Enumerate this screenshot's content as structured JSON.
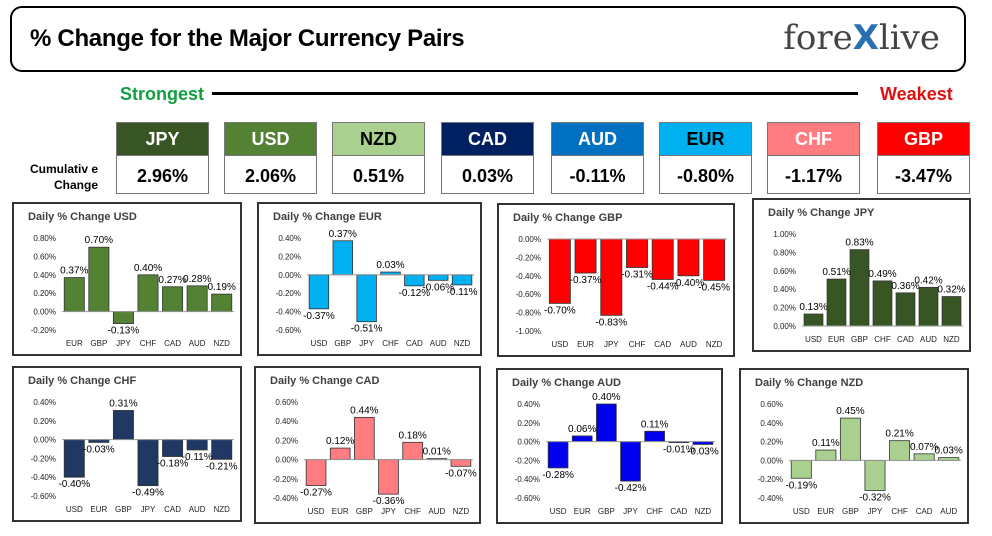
{
  "header": {
    "title": "% Change for the Major Currency Pairs",
    "logo_left": "fore",
    "logo_x": "X",
    "logo_right": "live"
  },
  "scale": {
    "strongest": "Strongest",
    "weakest": "Weakest"
  },
  "cumulative_label_1": "Cumulativ e",
  "cumulative_label_2": "Change",
  "rankings": [
    {
      "currency": "JPY",
      "value": "2.96%",
      "color": "#375623",
      "text_color": "#ffffff"
    },
    {
      "currency": "USD",
      "value": "2.06%",
      "color": "#548235",
      "text_color": "#ffffff"
    },
    {
      "currency": "NZD",
      "value": "0.51%",
      "color": "#a9d08e",
      "text_color": "#000000"
    },
    {
      "currency": "CAD",
      "value": "0.03%",
      "color": "#002060",
      "text_color": "#ffffff"
    },
    {
      "currency": "AUD",
      "value": "-0.11%",
      "color": "#0070c0",
      "text_color": "#ffffff"
    },
    {
      "currency": "EUR",
      "value": "-0.80%",
      "color": "#00b0f0",
      "text_color": "#000000"
    },
    {
      "currency": "CHF",
      "value": "-1.17%",
      "color": "#ff7c80",
      "text_color": "#ffffff"
    },
    {
      "currency": "GBP",
      "value": "-3.47%",
      "color": "#ff0000",
      "text_color": "#ffffff"
    }
  ],
  "chart_data": [
    {
      "type": "bar",
      "title": "Daily % Change USD",
      "color": "#548235",
      "categories": [
        "EUR",
        "GBP",
        "JPY",
        "CHF",
        "CAD",
        "AUD",
        "NZD"
      ],
      "values": [
        0.37,
        0.7,
        -0.13,
        0.4,
        0.27,
        0.28,
        0.19
      ],
      "labels": [
        "0.37%",
        "0.70%",
        "-0.13%",
        "0.40%",
        "0.27%",
        "0.28%",
        "0.19%"
      ],
      "ylim": [
        -0.2,
        0.8
      ],
      "ticks": [
        0.8,
        0.6,
        0.4,
        0.2,
        0.0,
        -0.2
      ],
      "tick_labels": [
        "0.80%",
        "0.60%",
        "0.40%",
        "0.20%",
        "0.00%",
        "-0.20%"
      ]
    },
    {
      "type": "bar",
      "title": "Daily % Change EUR",
      "color": "#00b0f0",
      "categories": [
        "USD",
        "GBP",
        "JPY",
        "CHF",
        "CAD",
        "AUD",
        "NZD"
      ],
      "values": [
        -0.37,
        0.37,
        -0.51,
        0.03,
        -0.12,
        -0.06,
        -0.11
      ],
      "labels": [
        "-0.37%",
        "0.37%",
        "-0.51%",
        "0.03%",
        "-0.12%",
        "-0.06%",
        "-0.11%"
      ],
      "ylim": [
        -0.6,
        0.4
      ],
      "ticks": [
        0.4,
        0.2,
        0.0,
        -0.2,
        -0.4,
        -0.6
      ],
      "tick_labels": [
        "0.40%",
        "0.20%",
        "0.00%",
        "-0.20%",
        "-0.40%",
        "-0.60%"
      ]
    },
    {
      "type": "bar",
      "title": "Daily % Change GBP",
      "color": "#ff0000",
      "categories": [
        "USD",
        "EUR",
        "JPY",
        "CHF",
        "CAD",
        "AUD",
        "NZD"
      ],
      "values": [
        -0.7,
        -0.37,
        -0.83,
        -0.31,
        -0.44,
        -0.4,
        -0.45
      ],
      "labels": [
        "-0.70%",
        "-0.37%",
        "-0.83%",
        "-0.31%",
        "-0.44%",
        "-0.40%",
        "-0.45%"
      ],
      "ylim": [
        -1.0,
        0.0
      ],
      "ticks": [
        0.0,
        -0.2,
        -0.4,
        -0.6,
        -0.8,
        -1.0
      ],
      "tick_labels": [
        "0.00%",
        "-0.20%",
        "-0.40%",
        "-0.60%",
        "-0.80%",
        "-1.00%"
      ]
    },
    {
      "type": "bar",
      "title": "Daily % Change JPY",
      "color": "#375623",
      "categories": [
        "USD",
        "EUR",
        "GBP",
        "CHF",
        "CAD",
        "AUD",
        "NZD"
      ],
      "values": [
        0.13,
        0.51,
        0.83,
        0.49,
        0.36,
        0.42,
        0.32
      ],
      "labels": [
        "0.13%",
        "0.51%",
        "0.83%",
        "0.49%",
        "0.36%",
        "0.42%",
        "0.32%"
      ],
      "ylim": [
        0.0,
        1.0
      ],
      "ticks": [
        1.0,
        0.8,
        0.6,
        0.4,
        0.2,
        0.0
      ],
      "tick_labels": [
        "1.00%",
        "0.80%",
        "0.60%",
        "0.40%",
        "0.20%",
        "0.00%"
      ]
    },
    {
      "type": "bar",
      "title": "Daily % Change CHF",
      "color": "#1f3864",
      "categories": [
        "USD",
        "EUR",
        "GBP",
        "JPY",
        "CAD",
        "AUD",
        "NZD"
      ],
      "values": [
        -0.4,
        -0.03,
        0.31,
        -0.49,
        -0.18,
        -0.11,
        -0.21
      ],
      "labels": [
        "-0.40%",
        "-0.03%",
        "0.31%",
        "-0.49%",
        "-0.18%",
        "-0.11%",
        "-0.21%"
      ],
      "ylim": [
        -0.6,
        0.4
      ],
      "ticks": [
        0.4,
        0.2,
        0.0,
        -0.2,
        -0.4,
        -0.6
      ],
      "tick_labels": [
        "0.40%",
        "0.20%",
        "0.00%",
        "-0.20%",
        "-0.40%",
        "-0.60%"
      ]
    },
    {
      "type": "bar",
      "title": "Daily % Change CAD",
      "color": "#ff7c80",
      "categories": [
        "USD",
        "EUR",
        "GBP",
        "JPY",
        "CHF",
        "AUD",
        "NZD"
      ],
      "values": [
        -0.27,
        0.12,
        0.44,
        -0.36,
        0.18,
        0.01,
        -0.07
      ],
      "labels": [
        "-0.27%",
        "0.12%",
        "0.44%",
        "-0.36%",
        "0.18%",
        "0.01%",
        "-0.07%"
      ],
      "ylim": [
        -0.4,
        0.6
      ],
      "ticks": [
        0.6,
        0.4,
        0.2,
        0.0,
        -0.2,
        -0.4
      ],
      "tick_labels": [
        "0.60%",
        "0.40%",
        "0.20%",
        "0.00%",
        "-0.20%",
        "-0.40%"
      ]
    },
    {
      "type": "bar",
      "title": "Daily % Change AUD",
      "color": "#0000ee",
      "categories": [
        "USD",
        "EUR",
        "GBP",
        "JPY",
        "CHF",
        "CAD",
        "NZD"
      ],
      "values": [
        -0.28,
        0.06,
        0.4,
        -0.42,
        0.11,
        -0.01,
        -0.03
      ],
      "labels": [
        "-0.28%",
        "0.06%",
        "0.40%",
        "-0.42%",
        "0.11%",
        "-0.01%",
        "-0.03%"
      ],
      "ylim": [
        -0.6,
        0.4
      ],
      "ticks": [
        0.4,
        0.2,
        0.0,
        -0.2,
        -0.4,
        -0.6
      ],
      "tick_labels": [
        "0.40%",
        "0.20%",
        "0.00%",
        "-0.20%",
        "-0.40%",
        "-0.60%"
      ]
    },
    {
      "type": "bar",
      "title": "Daily % Change NZD",
      "color": "#a9d08e",
      "categories": [
        "USD",
        "EUR",
        "GBP",
        "JPY",
        "CHF",
        "CAD",
        "AUD"
      ],
      "values": [
        -0.19,
        0.11,
        0.45,
        -0.32,
        0.21,
        0.07,
        0.03
      ],
      "labels": [
        "-0.19%",
        "0.11%",
        "0.45%",
        "-0.32%",
        "0.21%",
        "0.07%",
        "0.03%"
      ],
      "ylim": [
        -0.4,
        0.6
      ],
      "ticks": [
        0.6,
        0.4,
        0.2,
        0.0,
        -0.2,
        -0.4
      ],
      "tick_labels": [
        "0.60%",
        "0.40%",
        "0.20%",
        "0.00%",
        "-0.20%",
        "-0.40%"
      ]
    }
  ]
}
